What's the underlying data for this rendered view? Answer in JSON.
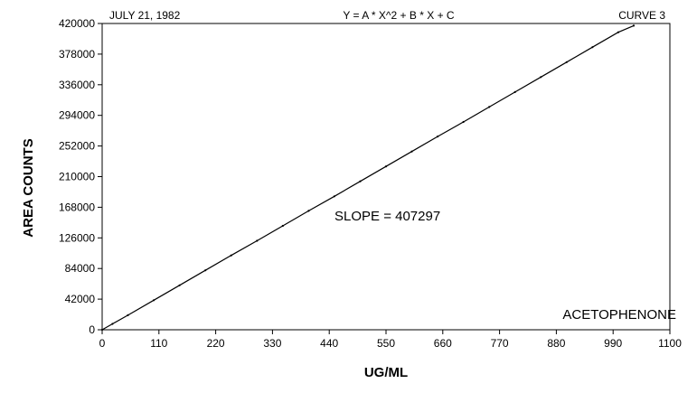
{
  "chart_data": {
    "type": "line",
    "date_text": "JULY 21, 1982",
    "equation": "Y = A * X^2 + B * X + C",
    "curve_label": "CURVE 3",
    "compound": "ACETOPHENONE",
    "slope_text": "SLOPE = 407297",
    "xlabel": "UG/ML",
    "ylabel": "AREA COUNTS",
    "xlim": [
      0,
      1100
    ],
    "ylim": [
      0,
      420000
    ],
    "x_ticks": [
      0,
      110,
      220,
      330,
      440,
      550,
      660,
      770,
      880,
      990,
      1100
    ],
    "y_ticks": [
      0,
      42000,
      84000,
      126000,
      168000,
      210000,
      252000,
      294000,
      336000,
      378000,
      420000
    ],
    "grid": false,
    "series": [
      {
        "x": [
          0,
          20,
          50,
          100,
          150,
          200,
          250,
          300,
          350,
          400,
          450,
          500,
          550,
          600,
          650,
          700,
          750,
          800,
          850,
          900,
          950,
          1000,
          1030
        ],
        "y": [
          0,
          8000,
          20000,
          40500,
          61000,
          81500,
          102000,
          122000,
          142500,
          163000,
          183000,
          203500,
          224000,
          244500,
          265000,
          285000,
          305500,
          326000,
          346500,
          367000,
          387500,
          408000,
          417000
        ]
      }
    ]
  }
}
